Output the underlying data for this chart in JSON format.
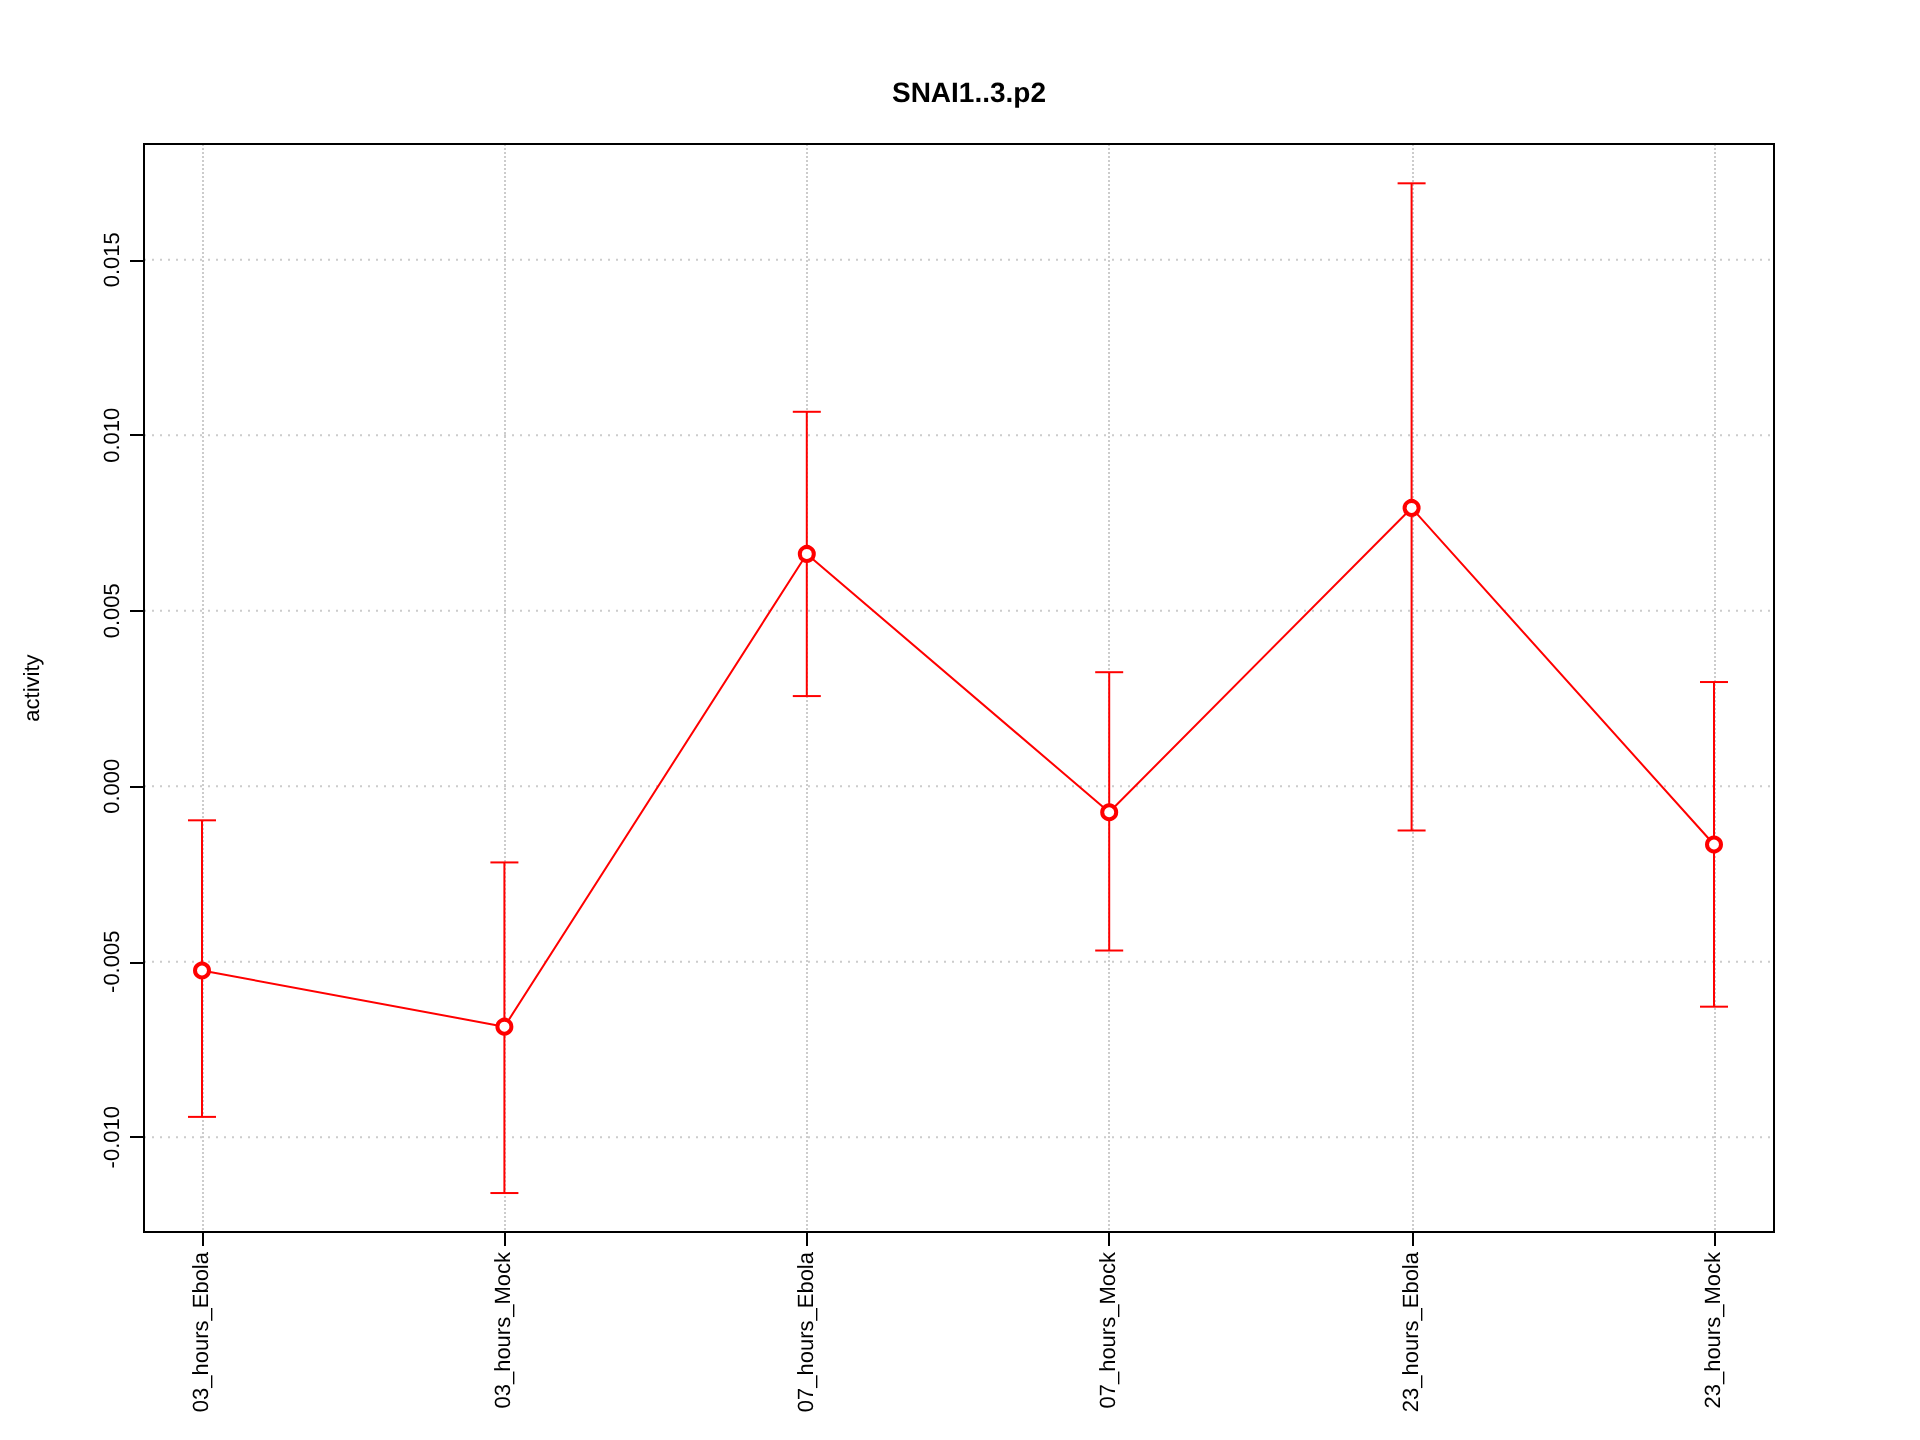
{
  "chart_data": {
    "type": "line",
    "title": "SNAI1..3.p2",
    "ylabel": "activity",
    "categories": [
      "03_hours_Ebola",
      "03_hours_Mock",
      "07_hours_Ebola",
      "07_hours_Mock",
      "23_hours_Ebola",
      "23_hours_Mock"
    ],
    "series": [
      {
        "color": "#ff0000",
        "values": [
          -0.00525,
          -0.00685,
          0.00662,
          -0.00074,
          0.00793,
          -0.00166
        ],
        "errors": [
          [
            -0.00942,
            -0.00097
          ],
          [
            -0.01159,
            -0.00217
          ],
          [
            0.00257,
            0.01067
          ],
          [
            -0.00468,
            0.00325
          ],
          [
            -0.00126,
            0.01718
          ],
          [
            -0.00628,
            0.00297
          ]
        ]
      }
    ],
    "ylim": [
      -0.0127,
      0.0183
    ],
    "yticks": [
      {
        "value": -0.01,
        "label": "-0.010"
      },
      -0.005,
      {
        "value": 0,
        "label": "0.000"
      },
      0.005,
      {
        "value": 0.01,
        "label": "0.010"
      },
      0.015
    ],
    "grid": true,
    "marker": "circle",
    "line_style": "solid"
  }
}
